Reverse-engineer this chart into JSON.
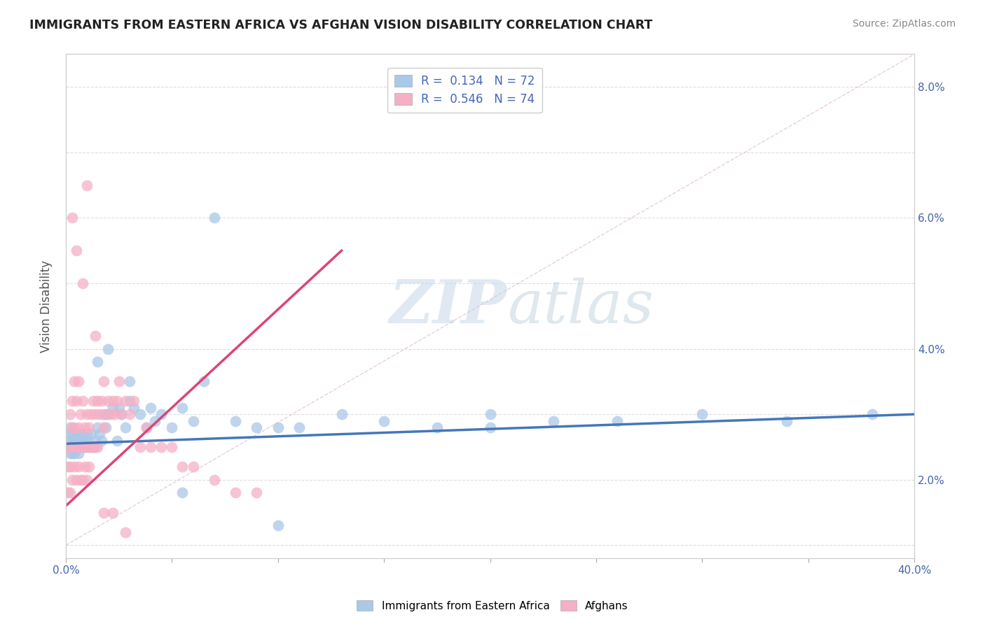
{
  "title": "IMMIGRANTS FROM EASTERN AFRICA VS AFGHAN VISION DISABILITY CORRELATION CHART",
  "source": "Source: ZipAtlas.com",
  "ylabel": "Vision Disability",
  "xlim": [
    0.0,
    0.4
  ],
  "ylim": [
    0.008,
    0.085
  ],
  "color_blue": "#aac8e8",
  "color_pink": "#f5b0c5",
  "line_blue": "#4477bb",
  "line_pink": "#dd4477",
  "watermark_zip": "ZIP",
  "watermark_atlas": "atlas",
  "blue_r": "0.134",
  "blue_n": "72",
  "pink_r": "0.546",
  "pink_n": "74",
  "blue_scatter_x": [
    0.001,
    0.001,
    0.002,
    0.002,
    0.002,
    0.003,
    0.003,
    0.003,
    0.003,
    0.004,
    0.004,
    0.004,
    0.005,
    0.005,
    0.005,
    0.006,
    0.006,
    0.006,
    0.007,
    0.007,
    0.008,
    0.008,
    0.009,
    0.009,
    0.01,
    0.01,
    0.011,
    0.012,
    0.013,
    0.014,
    0.015,
    0.016,
    0.017,
    0.018,
    0.019,
    0.02,
    0.022,
    0.024,
    0.025,
    0.026,
    0.028,
    0.03,
    0.032,
    0.035,
    0.038,
    0.04,
    0.042,
    0.045,
    0.05,
    0.055,
    0.06,
    0.065,
    0.07,
    0.08,
    0.09,
    0.1,
    0.11,
    0.13,
    0.15,
    0.175,
    0.2,
    0.23,
    0.26,
    0.3,
    0.34,
    0.38,
    0.015,
    0.02,
    0.03,
    0.055,
    0.1,
    0.2
  ],
  "blue_scatter_y": [
    0.026,
    0.025,
    0.027,
    0.024,
    0.028,
    0.025,
    0.026,
    0.024,
    0.027,
    0.026,
    0.025,
    0.024,
    0.027,
    0.026,
    0.025,
    0.025,
    0.027,
    0.024,
    0.025,
    0.026,
    0.027,
    0.025,
    0.026,
    0.025,
    0.027,
    0.026,
    0.025,
    0.027,
    0.025,
    0.026,
    0.028,
    0.027,
    0.026,
    0.03,
    0.028,
    0.03,
    0.031,
    0.026,
    0.031,
    0.03,
    0.028,
    0.032,
    0.031,
    0.03,
    0.028,
    0.031,
    0.029,
    0.03,
    0.028,
    0.031,
    0.029,
    0.035,
    0.06,
    0.029,
    0.028,
    0.028,
    0.028,
    0.03,
    0.029,
    0.028,
    0.028,
    0.029,
    0.029,
    0.03,
    0.029,
    0.03,
    0.038,
    0.04,
    0.035,
    0.018,
    0.013,
    0.03
  ],
  "pink_scatter_x": [
    0.001,
    0.001,
    0.001,
    0.002,
    0.002,
    0.002,
    0.002,
    0.003,
    0.003,
    0.003,
    0.003,
    0.004,
    0.004,
    0.004,
    0.005,
    0.005,
    0.005,
    0.006,
    0.006,
    0.006,
    0.007,
    0.007,
    0.007,
    0.008,
    0.008,
    0.008,
    0.009,
    0.009,
    0.01,
    0.01,
    0.01,
    0.011,
    0.011,
    0.012,
    0.012,
    0.013,
    0.013,
    0.014,
    0.014,
    0.015,
    0.015,
    0.016,
    0.017,
    0.018,
    0.018,
    0.019,
    0.02,
    0.021,
    0.022,
    0.023,
    0.024,
    0.025,
    0.026,
    0.028,
    0.03,
    0.032,
    0.035,
    0.038,
    0.04,
    0.045,
    0.05,
    0.055,
    0.06,
    0.07,
    0.08,
    0.09,
    0.003,
    0.005,
    0.008,
    0.01,
    0.014,
    0.018,
    0.022,
    0.028
  ],
  "pink_scatter_y": [
    0.025,
    0.022,
    0.018,
    0.03,
    0.025,
    0.022,
    0.018,
    0.032,
    0.028,
    0.025,
    0.02,
    0.035,
    0.028,
    0.022,
    0.032,
    0.025,
    0.02,
    0.035,
    0.028,
    0.022,
    0.03,
    0.025,
    0.02,
    0.032,
    0.025,
    0.02,
    0.028,
    0.022,
    0.03,
    0.025,
    0.02,
    0.028,
    0.022,
    0.03,
    0.025,
    0.032,
    0.025,
    0.03,
    0.025,
    0.032,
    0.025,
    0.03,
    0.032,
    0.035,
    0.028,
    0.03,
    0.032,
    0.03,
    0.032,
    0.03,
    0.032,
    0.035,
    0.03,
    0.032,
    0.03,
    0.032,
    0.025,
    0.028,
    0.025,
    0.025,
    0.025,
    0.022,
    0.022,
    0.02,
    0.018,
    0.018,
    0.06,
    0.055,
    0.05,
    0.065,
    0.042,
    0.015,
    0.015,
    0.012
  ]
}
